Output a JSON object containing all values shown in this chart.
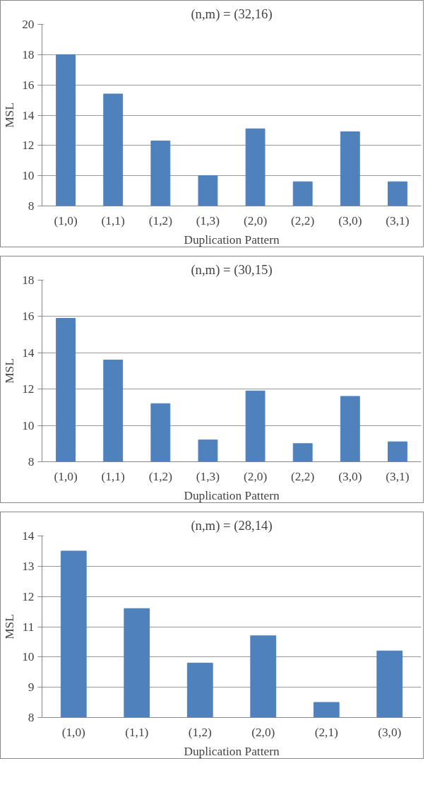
{
  "chart_data": [
    {
      "type": "bar",
      "title": "(n,m) = (32,16)",
      "xlabel": "Duplication Pattern",
      "ylabel": "MSL",
      "categories": [
        "(1,0)",
        "(1,1)",
        "(1,2)",
        "(1,3)",
        "(2,0)",
        "(2,2)",
        "(3,0)",
        "(3,1)"
      ],
      "values": [
        18.0,
        15.4,
        12.3,
        10.0,
        13.1,
        9.6,
        12.9,
        9.6
      ],
      "color": "#4f81bd",
      "ylim": [
        8,
        20
      ],
      "yticks": [
        8,
        10,
        12,
        14,
        16,
        18,
        20
      ],
      "grid": "y",
      "legend": false
    },
    {
      "type": "bar",
      "title": "(n,m) = (30,15)",
      "xlabel": "Duplication Pattern",
      "ylabel": "MSL",
      "categories": [
        "(1,0)",
        "(1,1)",
        "(1,2)",
        "(1,3)",
        "(2,0)",
        "(2,2)",
        "(3,0)",
        "(3,1)"
      ],
      "values": [
        15.9,
        13.6,
        11.2,
        9.2,
        11.9,
        9.0,
        11.6,
        9.1
      ],
      "color": "#4f81bd",
      "ylim": [
        8,
        18
      ],
      "yticks": [
        8,
        10,
        12,
        14,
        16,
        18
      ],
      "grid": "y",
      "legend": false
    },
    {
      "type": "bar",
      "title": "(n,m) = (28,14)",
      "xlabel": "Duplication Pattern",
      "ylabel": "MSL",
      "categories": [
        "(1,0)",
        "(1,1)",
        "(1,2)",
        "(2,0)",
        "(2,1)",
        "(3,0)"
      ],
      "values": [
        13.5,
        11.6,
        9.8,
        10.7,
        8.5,
        10.2
      ],
      "color": "#4f81bd",
      "ylim": [
        8,
        14
      ],
      "yticks": [
        8,
        9,
        10,
        11,
        12,
        13,
        14
      ],
      "grid": "y",
      "legend": false
    }
  ]
}
